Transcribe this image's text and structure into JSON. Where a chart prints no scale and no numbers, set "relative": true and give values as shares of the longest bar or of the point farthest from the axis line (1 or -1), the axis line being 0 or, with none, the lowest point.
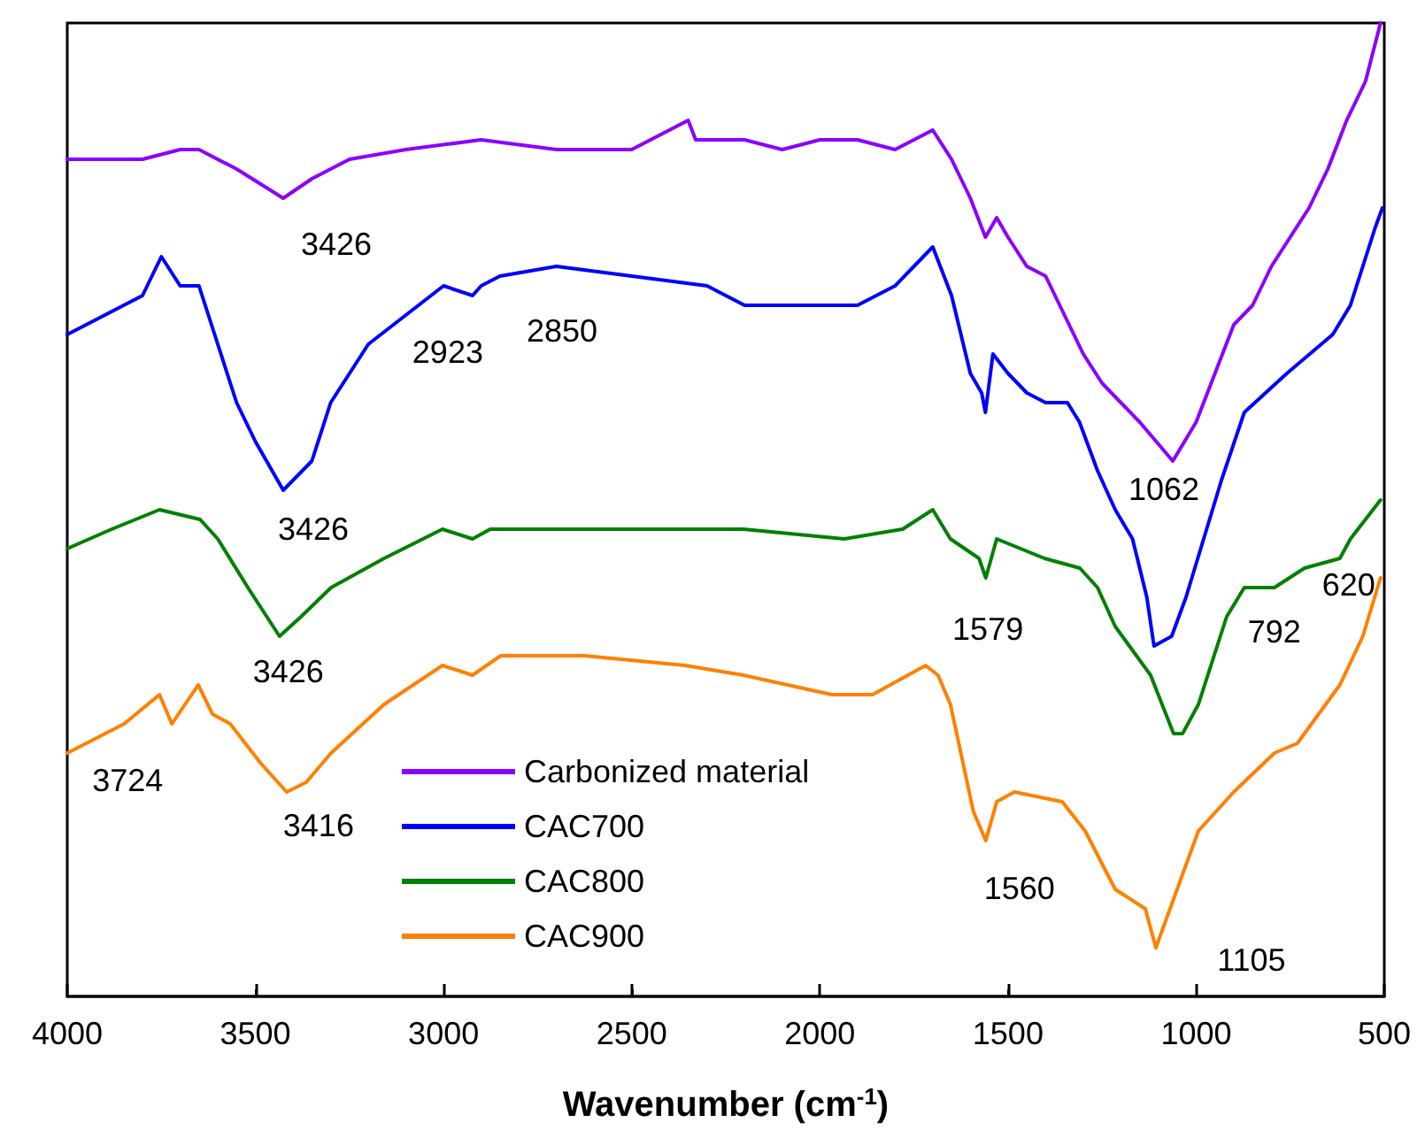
{
  "chart_data": {
    "type": "line",
    "relative": true,
    "xlabel": "Wavenumber (cm$^{-1}$)",
    "xlim": [
      4000,
      500
    ],
    "xticks": [
      4000,
      3500,
      3000,
      2500,
      2000,
      1500,
      1000,
      500
    ],
    "legend": "bottom",
    "grid": false,
    "marker": "none",
    "line_style": "solid",
    "series": [
      {
        "name": "Carbonized material",
        "color": "#8b00ff",
        "x": [
          4000,
          3800,
          3700,
          3650,
          3550,
          3426,
          3350,
          3250,
          3100,
          2900,
          2700,
          2500,
          2350,
          2330,
          2200,
          2100,
          2000,
          1900,
          1800,
          1750,
          1700,
          1650,
          1600,
          1560,
          1530,
          1500,
          1450,
          1400,
          1350,
          1300,
          1250,
          1200,
          1150,
          1062,
          1000,
          950,
          900,
          850,
          800,
          750,
          700,
          650,
          600,
          550,
          510
        ],
        "values": [
          0.86,
          0.86,
          0.87,
          0.87,
          0.85,
          0.82,
          0.84,
          0.86,
          0.87,
          0.88,
          0.87,
          0.87,
          0.9,
          0.88,
          0.88,
          0.87,
          0.88,
          0.88,
          0.87,
          0.88,
          0.89,
          0.86,
          0.82,
          0.78,
          0.8,
          0.78,
          0.75,
          0.74,
          0.7,
          0.66,
          0.63,
          0.61,
          0.59,
          0.55,
          0.59,
          0.64,
          0.69,
          0.71,
          0.75,
          0.78,
          0.81,
          0.85,
          0.9,
          0.94,
          1.0
        ]
      },
      {
        "name": "CAC700",
        "color": "#0000ff",
        "x": [
          4000,
          3900,
          3800,
          3750,
          3700,
          3650,
          3600,
          3550,
          3500,
          3426,
          3350,
          3300,
          3200,
          3100,
          3000,
          2923,
          2900,
          2850,
          2700,
          2500,
          2300,
          2200,
          2100,
          2000,
          1900,
          1800,
          1750,
          1700,
          1650,
          1600,
          1570,
          1560,
          1540,
          1500,
          1450,
          1400,
          1342,
          1310,
          1262,
          1215,
          1169,
          1131,
          1112,
          1065,
          1027,
          980,
          933,
          872,
          759,
          637,
          590,
          524,
          505
        ],
        "values": [
          0.68,
          0.7,
          0.72,
          0.76,
          0.73,
          0.73,
          0.67,
          0.61,
          0.57,
          0.52,
          0.55,
          0.61,
          0.67,
          0.7,
          0.73,
          0.72,
          0.73,
          0.74,
          0.75,
          0.74,
          0.73,
          0.71,
          0.71,
          0.71,
          0.71,
          0.73,
          0.75,
          0.77,
          0.72,
          0.64,
          0.62,
          0.6,
          0.66,
          0.64,
          0.62,
          0.61,
          0.61,
          0.59,
          0.54,
          0.5,
          0.47,
          0.41,
          0.36,
          0.37,
          0.41,
          0.47,
          0.53,
          0.6,
          0.64,
          0.68,
          0.71,
          0.79,
          0.81
        ]
      },
      {
        "name": "CAC800",
        "color": "#008000",
        "x": [
          4000,
          3882,
          3755,
          3647,
          3600,
          3520,
          3436,
          3379,
          3299,
          3158,
          3003,
          2923,
          2876,
          2782,
          2471,
          2203,
          1935,
          1780,
          1700,
          1653,
          1577,
          1559,
          1530,
          1403,
          1309,
          1262,
          1215,
          1121,
          1060,
          1036,
          994,
          919,
          872,
          792,
          712,
          618,
          590,
          510
        ],
        "values": [
          0.46,
          0.48,
          0.5,
          0.49,
          0.47,
          0.42,
          0.37,
          0.39,
          0.42,
          0.45,
          0.48,
          0.47,
          0.48,
          0.48,
          0.48,
          0.48,
          0.47,
          0.48,
          0.5,
          0.47,
          0.45,
          0.43,
          0.47,
          0.45,
          0.44,
          0.42,
          0.38,
          0.33,
          0.27,
          0.27,
          0.3,
          0.39,
          0.42,
          0.42,
          0.44,
          0.45,
          0.47,
          0.51
        ]
      },
      {
        "name": "CAC900",
        "color": "#ff8000",
        "x": [
          4000,
          3849,
          3755,
          3722,
          3652,
          3614,
          3567,
          3487,
          3417,
          3365,
          3299,
          3158,
          3003,
          2923,
          2848,
          2782,
          2626,
          2358,
          2203,
          1968,
          1860,
          1719,
          1686,
          1653,
          1592,
          1559,
          1530,
          1483,
          1356,
          1295,
          1215,
          1135,
          1107,
          1060,
          994,
          900,
          792,
          731,
          618,
          557,
          510
        ],
        "values": [
          0.25,
          0.28,
          0.31,
          0.28,
          0.32,
          0.29,
          0.28,
          0.24,
          0.21,
          0.22,
          0.25,
          0.3,
          0.34,
          0.33,
          0.35,
          0.35,
          0.35,
          0.34,
          0.33,
          0.31,
          0.31,
          0.34,
          0.33,
          0.3,
          0.19,
          0.16,
          0.2,
          0.21,
          0.2,
          0.17,
          0.11,
          0.09,
          0.05,
          0.1,
          0.17,
          0.21,
          0.25,
          0.26,
          0.32,
          0.37,
          0.43
        ]
      }
    ],
    "annotations": [
      {
        "text": "3426",
        "x": 3426,
        "y": 0.82
      },
      {
        "text": "2923",
        "x": 2923,
        "y": 0.72
      },
      {
        "text": "2850",
        "x": 2850,
        "y": 0.74
      },
      {
        "text": "3426",
        "x": 3426,
        "y": 0.52
      },
      {
        "text": "1062",
        "x": 1062,
        "y": 0.55
      },
      {
        "text": "3426",
        "x": 3436,
        "y": 0.37
      },
      {
        "text": "1579",
        "x": 1577,
        "y": 0.45
      },
      {
        "text": "792",
        "x": 792,
        "y": 0.42
      },
      {
        "text": "620",
        "x": 618,
        "y": 0.45
      },
      {
        "text": "3724",
        "x": 3722,
        "y": 0.28
      },
      {
        "text": "3416",
        "x": 3417,
        "y": 0.21
      },
      {
        "text": "1560",
        "x": 1559,
        "y": 0.16
      },
      {
        "text": "1105",
        "x": 1107,
        "y": 0.05
      }
    ]
  }
}
